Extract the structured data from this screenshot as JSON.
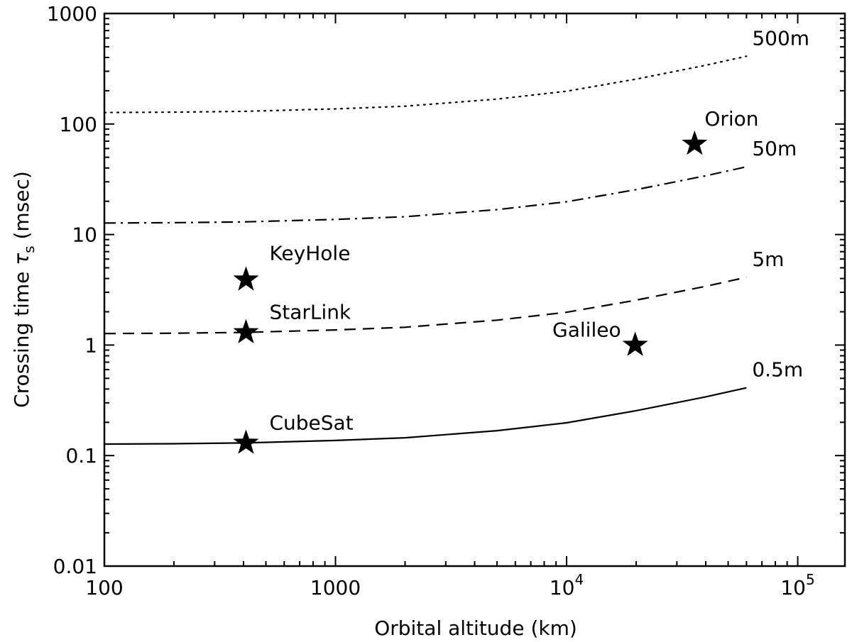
{
  "chart_data": {
    "type": "line",
    "xlabel": "Orbital altitude (km)",
    "ylabel": {
      "prefix": "Crossing time ",
      "symbol": "τ",
      "subscript": "s",
      "suffix": " (msec)"
    },
    "xscale": "log",
    "yscale": "log",
    "xlim": [
      100,
      160000
    ],
    "ylim": [
      0.01,
      1000
    ],
    "grid": false,
    "legend": "none",
    "xticks": [
      {
        "value": 100,
        "label": "100"
      },
      {
        "value": 1000,
        "label": "1000"
      },
      {
        "value": 10000,
        "label": "10",
        "exp": "4"
      },
      {
        "value": 100000,
        "label": "10",
        "exp": "5"
      }
    ],
    "yticks": [
      {
        "value": 0.01,
        "label": "0.01"
      },
      {
        "value": 0.1,
        "label": "0.1"
      },
      {
        "value": 1,
        "label": "1"
      },
      {
        "value": 10,
        "label": "10"
      },
      {
        "value": 100,
        "label": "100"
      },
      {
        "value": 1000,
        "label": "1000"
      }
    ],
    "series": [
      {
        "name": "0.5m",
        "style": "solid",
        "x": [
          100,
          200,
          400,
          1000,
          2000,
          5000,
          10000,
          20000,
          40000,
          60000
        ],
        "y": [
          0.127,
          0.128,
          0.13,
          0.137,
          0.145,
          0.168,
          0.198,
          0.255,
          0.34,
          0.41
        ]
      },
      {
        "name": "5m",
        "style": "dashed",
        "x": [
          100,
          200,
          400,
          1000,
          2000,
          5000,
          10000,
          20000,
          40000,
          60000
        ],
        "y": [
          1.27,
          1.28,
          1.3,
          1.37,
          1.45,
          1.68,
          1.98,
          2.55,
          3.4,
          4.1
        ]
      },
      {
        "name": "50m",
        "style": "dashdot",
        "x": [
          100,
          200,
          400,
          1000,
          2000,
          5000,
          10000,
          20000,
          40000,
          60000
        ],
        "y": [
          12.7,
          12.8,
          13.0,
          13.7,
          14.5,
          16.8,
          19.8,
          25.5,
          34,
          41
        ]
      },
      {
        "name": "500m",
        "style": "dotted",
        "x": [
          100,
          200,
          400,
          1000,
          2000,
          5000,
          10000,
          20000,
          40000,
          60000
        ],
        "y": [
          127,
          128,
          130,
          137,
          145,
          168,
          198,
          255,
          340,
          410
        ]
      }
    ],
    "satellites": [
      {
        "name": "KeyHole",
        "x": 410,
        "y": 3.9
      },
      {
        "name": "StarLink",
        "x": 410,
        "y": 1.3
      },
      {
        "name": "CubeSat",
        "x": 410,
        "y": 0.13
      },
      {
        "name": "Galileo",
        "x": 19800,
        "y": 1.0
      },
      {
        "name": "Orion",
        "x": 35800,
        "y": 66
      }
    ]
  }
}
